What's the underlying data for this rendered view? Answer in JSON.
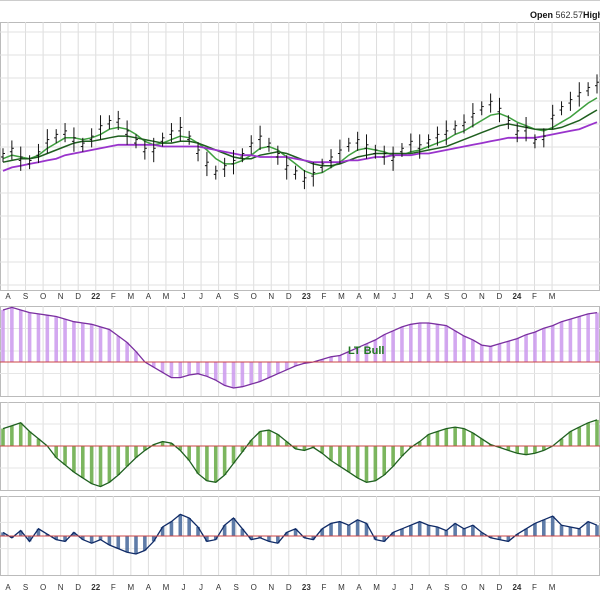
{
  "header": {
    "open_label": "Open",
    "open_value": "562.57",
    "high_label": "High"
  },
  "chart_data": [
    {
      "panel": "price",
      "type": "line",
      "time_labels": [
        "A",
        "S",
        "O",
        "N",
        "D",
        "22",
        "F",
        "M",
        "A",
        "M",
        "J",
        "J",
        "A",
        "S",
        "O",
        "N",
        "D",
        "23",
        "F",
        "M",
        "A",
        "M",
        "J",
        "J",
        "A",
        "S",
        "O",
        "N",
        "D",
        "24",
        "F",
        "M"
      ],
      "x": [
        1,
        3,
        5,
        7,
        9,
        11,
        13,
        15,
        17,
        19,
        21,
        23,
        25,
        27,
        29,
        31,
        33,
        35,
        37,
        39,
        41,
        43,
        45,
        47,
        49,
        51,
        53,
        55,
        57,
        59,
        61,
        63,
        65,
        67,
        69,
        71,
        73,
        75,
        77,
        79,
        81,
        83,
        85,
        87,
        89,
        91,
        93,
        95,
        97,
        99,
        101,
        103,
        105,
        107,
        109,
        111,
        113,
        115,
        117,
        119,
        121,
        123,
        125,
        127,
        129,
        131,
        133,
        135
      ],
      "grid": true,
      "series": [
        {
          "role": "price-bars",
          "color": "#111111",
          "values": [
            131,
            134,
            129,
            127,
            132,
            139,
            142,
            144,
            140,
            137,
            141,
            147,
            150,
            151,
            144,
            139,
            134,
            134,
            140,
            144,
            146,
            141,
            133,
            126,
            121,
            124,
            127,
            131,
            137,
            141,
            137,
            131,
            124,
            121,
            117,
            120,
            125,
            129,
            133,
            137,
            139,
            136,
            133,
            131,
            129,
            134,
            138,
            136,
            139,
            142,
            144,
            147,
            149,
            154,
            158,
            161,
            157,
            150,
            144,
            146,
            139,
            141,
            153,
            158,
            162,
            166,
            169,
            172
          ]
        },
        {
          "role": "ma-short",
          "color": "#3f9f3f",
          "values": [
            129,
            131,
            130,
            129,
            131,
            135,
            138,
            141,
            141,
            140,
            141,
            143,
            146,
            147,
            146,
            143,
            139,
            137,
            138,
            140,
            142,
            141,
            138,
            134,
            129,
            126,
            126,
            128,
            131,
            135,
            136,
            134,
            130,
            126,
            122,
            120,
            121,
            124,
            127,
            131,
            134,
            135,
            134,
            133,
            131,
            131,
            133,
            134,
            136,
            138,
            140,
            143,
            145,
            148,
            151,
            154,
            155,
            153,
            150,
            148,
            146,
            145,
            147,
            150,
            153,
            157,
            161,
            164
          ]
        },
        {
          "role": "ma-medium",
          "color": "#1f5f1f",
          "values": [
            127,
            128,
            129,
            129,
            130,
            132,
            134,
            136,
            138,
            139,
            139,
            140,
            141,
            142,
            142,
            141,
            140,
            139,
            138,
            138,
            139,
            139,
            138,
            136,
            134,
            132,
            130,
            129,
            129,
            131,
            132,
            133,
            132,
            130,
            128,
            126,
            125,
            125,
            126,
            128,
            130,
            131,
            132,
            132,
            132,
            132,
            132,
            133,
            134,
            135,
            136,
            138,
            140,
            142,
            144,
            146,
            148,
            149,
            148,
            147,
            146,
            146,
            146,
            147,
            149,
            151,
            154,
            157
          ]
        },
        {
          "role": "ma-long",
          "color": "#9933cc",
          "values": [
            122,
            124,
            125,
            126,
            127,
            128,
            129,
            131,
            132,
            133,
            134,
            135,
            136,
            137,
            137,
            137,
            137,
            137,
            136,
            136,
            136,
            136,
            136,
            135,
            134,
            133,
            132,
            131,
            131,
            130,
            130,
            130,
            130,
            129,
            128,
            127,
            127,
            127,
            127,
            128,
            128,
            129,
            130,
            130,
            131,
            131,
            131,
            132,
            132,
            133,
            134,
            135,
            136,
            137,
            138,
            139,
            140,
            141,
            141,
            141,
            141,
            142,
            143,
            144,
            145,
            146,
            148,
            150
          ]
        }
      ]
    },
    {
      "panel": "indicator-1",
      "type": "area",
      "color": "#cc99ee",
      "annotation": "LT Bull",
      "values": [
        40,
        42,
        40,
        38,
        37,
        36,
        35,
        33,
        31,
        30,
        29,
        27,
        25,
        20,
        15,
        8,
        0,
        -4,
        -8,
        -12,
        -12,
        -10,
        -9,
        -11,
        -14,
        -18,
        -20,
        -19,
        -17,
        -15,
        -12,
        -9,
        -6,
        -3,
        -1,
        0,
        2,
        4,
        5,
        8,
        11,
        14,
        17,
        21,
        24,
        27,
        29,
        30,
        30,
        29,
        28,
        24,
        20,
        17,
        13,
        12,
        14,
        16,
        18,
        21,
        23,
        26,
        28,
        31,
        33,
        35,
        37,
        38
      ]
    },
    {
      "panel": "indicator-2",
      "type": "area",
      "color": "#66aa44",
      "values": [
        12,
        14,
        16,
        10,
        5,
        0,
        -8,
        -13,
        -18,
        -22,
        -26,
        -28,
        -25,
        -20,
        -14,
        -8,
        -3,
        1,
        3,
        2,
        -3,
        -10,
        -19,
        -24,
        -25,
        -20,
        -12,
        -4,
        4,
        10,
        11,
        8,
        3,
        -2,
        -3,
        -1,
        -5,
        -10,
        -14,
        -18,
        -22,
        -25,
        -24,
        -20,
        -14,
        -7,
        -1,
        3,
        8,
        10,
        12,
        13,
        12,
        9,
        5,
        1,
        -1,
        -3,
        -5,
        -6,
        -5,
        -3,
        0,
        5,
        10,
        13,
        16,
        18
      ]
    },
    {
      "panel": "indicator-3",
      "type": "area",
      "color": "#446699",
      "values": [
        2,
        -1,
        3,
        -3,
        4,
        1,
        -2,
        -3,
        2,
        -2,
        -4,
        -2,
        -5,
        -7,
        -9,
        -10,
        -8,
        -3,
        5,
        8,
        12,
        10,
        5,
        -3,
        -2,
        6,
        10,
        4,
        -2,
        -1,
        -3,
        -4,
        2,
        4,
        -1,
        -2,
        4,
        7,
        8,
        6,
        9,
        7,
        -2,
        -3,
        2,
        4,
        6,
        8,
        6,
        5,
        3,
        7,
        4,
        6,
        2,
        -1,
        -2,
        -3,
        1,
        4,
        7,
        9,
        11,
        6,
        5,
        4,
        8,
        6
      ]
    }
  ]
}
